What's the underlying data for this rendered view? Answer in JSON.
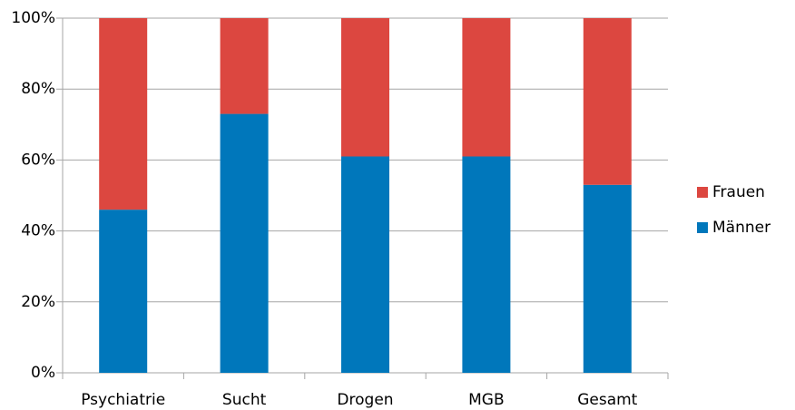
{
  "chart_data": {
    "type": "stacked_bar",
    "categories": [
      "Psychiatrie",
      "Sucht",
      "Drogen",
      "MGB",
      "Gesamt"
    ],
    "series": [
      {
        "name": "Männer",
        "color": "#0077bb",
        "values": [
          46,
          73,
          61,
          61,
          53
        ]
      },
      {
        "name": "Frauen",
        "color": "#dc4740",
        "values": [
          54,
          27,
          39,
          39,
          47
        ]
      }
    ],
    "ylim": [
      0,
      100
    ],
    "yticks": [
      {
        "value": 0,
        "label": "0%"
      },
      {
        "value": 20,
        "label": "20%"
      },
      {
        "value": 40,
        "label": "40%"
      },
      {
        "value": 60,
        "label": "60%"
      },
      {
        "value": 80,
        "label": "80%"
      },
      {
        "value": 100,
        "label": "100%"
      }
    ],
    "grid": true,
    "legend": "right"
  }
}
